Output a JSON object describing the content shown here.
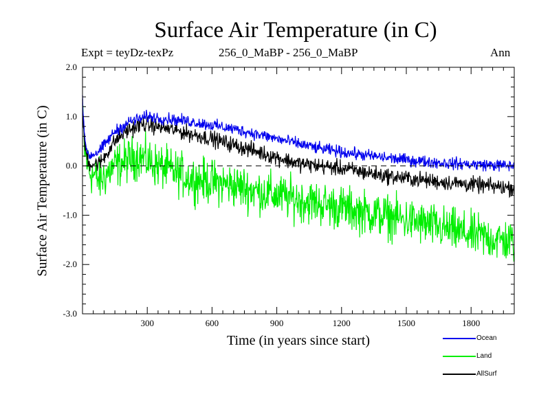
{
  "chart_data": {
    "type": "line",
    "title": "Surface Air Temperature (in C)",
    "subtitle_left": "Expt = teyDz-texPz",
    "subtitle_center": "256_0_MaBP - 256_0_MaBP",
    "subtitle_right": "Ann",
    "xlabel": "Time (in years since start)",
    "ylabel": "Surface Air Temperature (in C)",
    "xlim": [
      0,
      2000
    ],
    "ylim": [
      -3.0,
      2.0
    ],
    "xticks": [
      300,
      600,
      900,
      1200,
      1500,
      1800
    ],
    "yticks": [
      -3.0,
      -2.0,
      -1.0,
      0.0,
      1.0,
      2.0
    ],
    "ytick_labels": [
      "-3.0",
      "-2.0",
      "-1.0",
      "0.0",
      "1.0",
      "2.0"
    ],
    "zero_line": "dashed",
    "series": [
      {
        "name": "Land",
        "color": "#00ee00",
        "noise": 0.22,
        "trend": [
          [
            0,
            1.0
          ],
          [
            10,
            0.3
          ],
          [
            30,
            -0.1
          ],
          [
            80,
            -0.3
          ],
          [
            150,
            0.0
          ],
          [
            260,
            0.2
          ],
          [
            350,
            0.0
          ],
          [
            500,
            -0.25
          ],
          [
            700,
            -0.4
          ],
          [
            900,
            -0.6
          ],
          [
            1200,
            -0.85
          ],
          [
            1500,
            -1.1
          ],
          [
            1800,
            -1.4
          ],
          [
            2000,
            -1.55
          ]
        ]
      },
      {
        "name": "AllSurf",
        "color": "#000000",
        "noise": 0.08,
        "trend": [
          [
            0,
            1.2
          ],
          [
            10,
            0.4
          ],
          [
            30,
            0.05
          ],
          [
            80,
            0.05
          ],
          [
            150,
            0.5
          ],
          [
            200,
            0.7
          ],
          [
            280,
            0.85
          ],
          [
            400,
            0.75
          ],
          [
            600,
            0.55
          ],
          [
            800,
            0.3
          ],
          [
            1000,
            0.05
          ],
          [
            1200,
            -0.05
          ],
          [
            1400,
            -0.2
          ],
          [
            1600,
            -0.3
          ],
          [
            1800,
            -0.38
          ],
          [
            2000,
            -0.45
          ]
        ]
      },
      {
        "name": "Ocean",
        "color": "#0000ee",
        "noise": 0.06,
        "trend": [
          [
            0,
            1.4
          ],
          [
            10,
            0.5
          ],
          [
            30,
            0.2
          ],
          [
            80,
            0.3
          ],
          [
            150,
            0.7
          ],
          [
            220,
            0.9
          ],
          [
            300,
            1.0
          ],
          [
            500,
            0.9
          ],
          [
            700,
            0.75
          ],
          [
            900,
            0.55
          ],
          [
            1100,
            0.35
          ],
          [
            1300,
            0.22
          ],
          [
            1500,
            0.12
          ],
          [
            1700,
            0.05
          ],
          [
            2000,
            0.0
          ]
        ]
      }
    ],
    "legend": [
      {
        "label": "Ocean",
        "color": "#0000ee"
      },
      {
        "label": "Land",
        "color": "#00ee00"
      },
      {
        "label": "AllSurf",
        "color": "#000000"
      }
    ]
  }
}
